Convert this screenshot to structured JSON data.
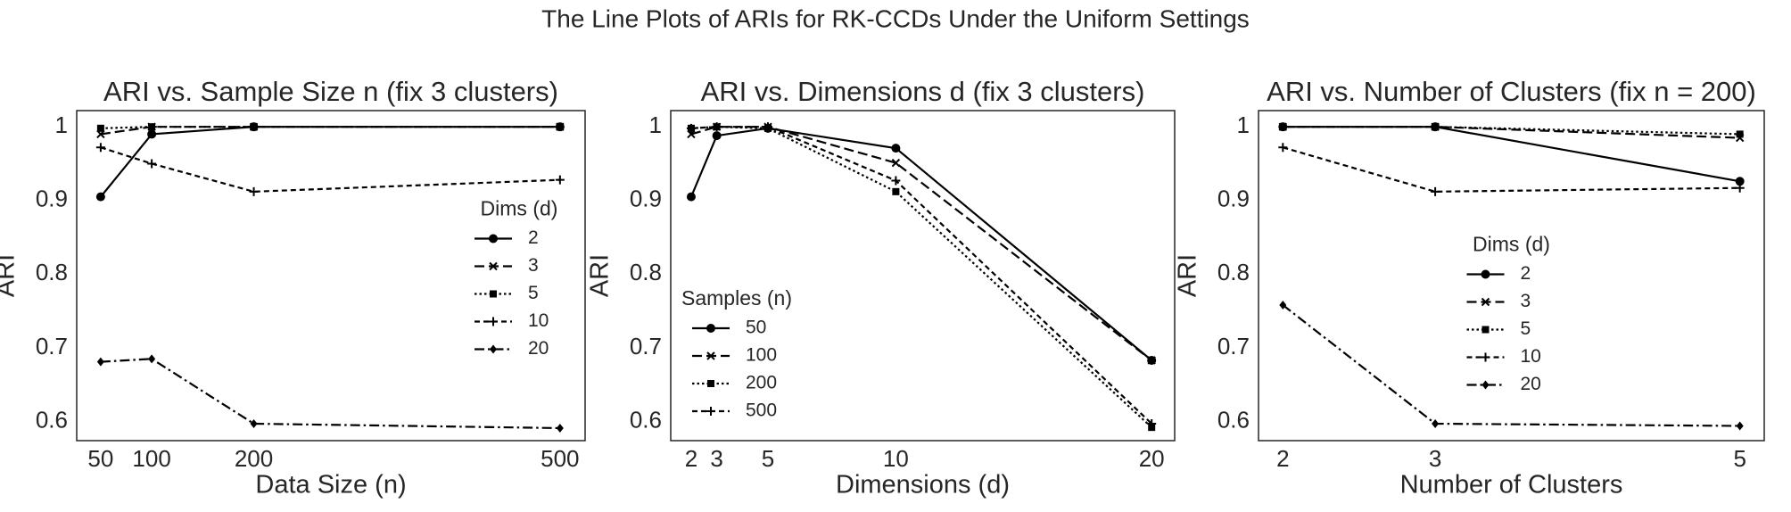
{
  "title": "The Line Plots of ARIs for RK-CCDs Under the Uniform Settings",
  "chart_data": [
    {
      "type": "line",
      "title": "ARI vs. Sample Size n (fix 3 clusters)",
      "xlabel": "Data Size (n)",
      "ylabel": "ARI",
      "x": [
        50,
        100,
        200,
        500
      ],
      "xlim": [
        26.5,
        524.6
      ],
      "xticks": [
        50,
        100,
        200,
        500
      ],
      "ylim": [
        0.574,
        1.022
      ],
      "yticks": [
        0.6,
        0.7,
        0.8,
        0.9,
        1.0
      ],
      "grid": false,
      "legend_title": "Dims (d)",
      "legend": "center right",
      "series": [
        {
          "name": "2",
          "color": "#000000",
          "dash": "solid",
          "marker": "o",
          "values": [
            0.905,
            0.99,
            1.0,
            1.0
          ]
        },
        {
          "name": "3",
          "color": "#000000",
          "dash": "dashed",
          "marker": "x",
          "values": [
            0.99,
            1.0,
            1.0,
            1.0
          ]
        },
        {
          "name": "5",
          "color": "#000000",
          "dash": "dotted",
          "marker": "s",
          "values": [
            0.998,
            1.0,
            1.0,
            1.0
          ]
        },
        {
          "name": "10",
          "color": "#000000",
          "dash": "short-dashed",
          "marker": "+",
          "values": [
            0.972,
            0.95,
            0.912,
            0.928
          ]
        },
        {
          "name": "20",
          "color": "#000000",
          "dash": "dashdot",
          "marker": "d",
          "values": [
            0.681,
            0.685,
            0.597,
            0.591
          ]
        }
      ]
    },
    {
      "type": "line",
      "title": "ARI vs. Dimensions d (fix 3 clusters)",
      "xlabel": "Dimensions (d)",
      "ylabel": "ARI",
      "x": [
        2,
        3,
        5,
        10,
        20
      ],
      "xlim": [
        1.2,
        20.9
      ],
      "xticks": [
        2,
        3,
        5,
        10,
        20
      ],
      "ylim": [
        0.574,
        1.022
      ],
      "yticks": [
        0.6,
        0.7,
        0.8,
        0.9,
        1.0
      ],
      "grid": false,
      "legend_title": "Samples (n)",
      "legend": "lower left",
      "series": [
        {
          "name": "50",
          "color": "#000000",
          "dash": "solid",
          "marker": "o",
          "values": [
            0.905,
            0.988,
            0.998,
            0.971,
            0.683
          ]
        },
        {
          "name": "100",
          "color": "#000000",
          "dash": "dashed",
          "marker": "x",
          "values": [
            0.99,
            1.0,
            1.0,
            0.951,
            0.683
          ]
        },
        {
          "name": "200",
          "color": "#000000",
          "dash": "dotted",
          "marker": "s",
          "values": [
            0.998,
            1.0,
            0.998,
            0.912,
            0.592
          ]
        },
        {
          "name": "500",
          "color": "#000000",
          "dash": "short-dashed",
          "marker": "+",
          "values": [
            0.998,
            1.0,
            1.0,
            0.927,
            0.597
          ]
        }
      ]
    },
    {
      "type": "line",
      "title": "ARI vs. Number of Clusters (fix n = 200)",
      "xlabel": "Number of Clusters",
      "ylabel": "ARI",
      "x": [
        2,
        3,
        5
      ],
      "xlim": [
        1.84,
        5.16
      ],
      "xticks": [
        2,
        3,
        5
      ],
      "ylim": [
        0.574,
        1.022
      ],
      "yticks": [
        0.6,
        0.7,
        0.8,
        0.9,
        1.0
      ],
      "grid": false,
      "legend_title": "Dims (d)",
      "legend": "center",
      "series": [
        {
          "name": "2",
          "color": "#000000",
          "dash": "solid",
          "marker": "o",
          "values": [
            1.0,
            1.0,
            0.926
          ]
        },
        {
          "name": "3",
          "color": "#000000",
          "dash": "dashed",
          "marker": "x",
          "values": [
            1.0,
            1.0,
            0.985
          ]
        },
        {
          "name": "5",
          "color": "#000000",
          "dash": "dotted",
          "marker": "s",
          "values": [
            1.0,
            1.0,
            0.99
          ]
        },
        {
          "name": "10",
          "color": "#000000",
          "dash": "short-dashed",
          "marker": "+",
          "values": [
            0.972,
            0.912,
            0.917
          ]
        },
        {
          "name": "20",
          "color": "#000000",
          "dash": "dashdot",
          "marker": "d",
          "values": [
            0.758,
            0.597,
            0.594
          ]
        }
      ]
    }
  ]
}
